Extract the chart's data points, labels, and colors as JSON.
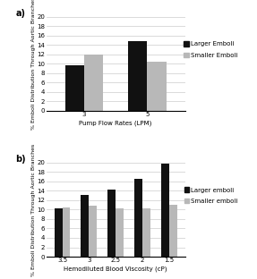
{
  "panel_a": {
    "categories": [
      "3",
      "5"
    ],
    "larger_emboli": [
      9.7,
      14.8
    ],
    "smaller_emboli": [
      12.0,
      10.5
    ],
    "xlabel": "Pump Flow Rates (LPM)",
    "ylabel": "% Emboli Distribution Through Aortic Branches",
    "ylim": [
      0,
      20
    ],
    "yticks": [
      0,
      2,
      4,
      6,
      8,
      10,
      12,
      14,
      16,
      18,
      20
    ],
    "legend_larger": "Larger Emboli",
    "legend_smaller": "Smaller Emboli",
    "label": "a)"
  },
  "panel_b": {
    "categories": [
      "3.5",
      "3",
      "2.5",
      "2",
      "1.5"
    ],
    "larger_emboli": [
      10.3,
      13.2,
      14.3,
      16.6,
      19.7
    ],
    "smaller_emboli": [
      10.5,
      10.8,
      10.3,
      10.2,
      11.0
    ],
    "xlabel": "Hemodiluted Blood Viscosity (cP)",
    "ylabel": "% Emboli Distribution Through Aortic Branches",
    "ylim": [
      0,
      20
    ],
    "yticks": [
      0,
      2,
      4,
      6,
      8,
      10,
      12,
      14,
      16,
      18,
      20
    ],
    "legend_larger": "Larger emboli",
    "legend_smaller": "Smaller emboli",
    "label": "b)"
  },
  "bar_width": 0.3,
  "color_larger": "#111111",
  "color_smaller": "#b8b8b8",
  "background_color": "#ffffff",
  "grid_color": "#cccccc",
  "label_fontsize": 7,
  "axis_fontsize": 5.0,
  "tick_fontsize": 5.0,
  "legend_fontsize": 5.0,
  "ylabel_fontsize": 4.5
}
